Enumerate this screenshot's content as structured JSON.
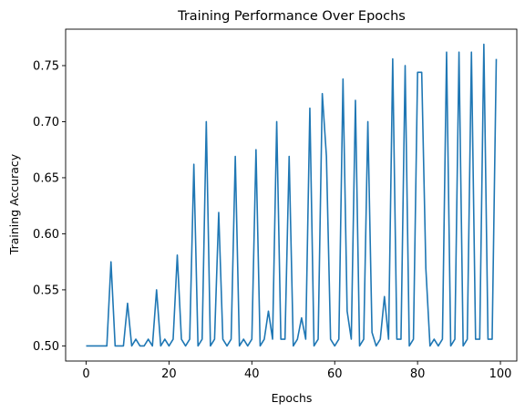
{
  "chart_data": {
    "type": "line",
    "title": "Training Performance Over Epochs",
    "xlabel": "Epochs",
    "ylabel": "Training Accuracy",
    "xlim": [
      -4.95,
      103.95
    ],
    "ylim": [
      0.4865,
      0.7825
    ],
    "xticks": [
      0,
      20,
      40,
      60,
      80,
      100
    ],
    "xtick_labels": [
      "0",
      "20",
      "40",
      "60",
      "80",
      "100"
    ],
    "yticks": [
      0.5,
      0.55,
      0.6,
      0.65,
      0.7,
      0.75
    ],
    "ytick_labels": [
      "0.50",
      "0.55",
      "0.60",
      "0.65",
      "0.70",
      "0.75"
    ],
    "grid": false,
    "line_color": "#1f77b4",
    "series": [
      {
        "x": [
          0,
          1,
          2,
          3,
          4,
          5,
          6,
          7,
          8,
          9,
          10,
          11,
          12,
          13,
          14,
          15,
          16,
          17,
          18,
          19,
          20,
          21,
          22,
          23,
          24,
          25,
          26,
          27,
          28,
          29,
          30,
          31,
          32,
          33,
          34,
          35,
          36,
          37,
          38,
          39,
          40,
          41,
          42,
          43,
          44,
          45,
          46,
          47,
          48,
          49,
          50,
          51,
          52,
          53,
          54,
          55,
          56,
          57,
          58,
          59,
          60,
          61,
          62,
          63,
          64,
          65,
          66,
          67,
          68,
          69,
          70,
          71,
          72,
          73,
          74,
          75,
          76,
          77,
          78,
          79,
          80,
          81,
          82,
          83,
          84,
          85,
          86,
          87,
          88,
          89,
          90,
          91,
          92,
          93,
          94,
          95,
          96,
          97,
          98,
          99
        ],
        "values": [
          0.5,
          0.5,
          0.5,
          0.5,
          0.5,
          0.5,
          0.575,
          0.5,
          0.5,
          0.5,
          0.538,
          0.5,
          0.506,
          0.5,
          0.5,
          0.506,
          0.5,
          0.55,
          0.5,
          0.506,
          0.5,
          0.506,
          0.581,
          0.506,
          0.5,
          0.506,
          0.662,
          0.5,
          0.506,
          0.7,
          0.5,
          0.506,
          0.619,
          0.506,
          0.5,
          0.506,
          0.669,
          0.5,
          0.506,
          0.5,
          0.506,
          0.675,
          0.5,
          0.506,
          0.531,
          0.506,
          0.7,
          0.506,
          0.506,
          0.669,
          0.5,
          0.506,
          0.525,
          0.506,
          0.712,
          0.5,
          0.506,
          0.725,
          0.669,
          0.506,
          0.5,
          0.506,
          0.738,
          0.531,
          0.506,
          0.719,
          0.5,
          0.506,
          0.7,
          0.512,
          0.5,
          0.506,
          0.544,
          0.506,
          0.756,
          0.506,
          0.506,
          0.75,
          0.5,
          0.506,
          0.744,
          0.744,
          0.569,
          0.5,
          0.506,
          0.5,
          0.506,
          0.762,
          0.5,
          0.506,
          0.762,
          0.5,
          0.506,
          0.762,
          0.506,
          0.506,
          0.769,
          0.506,
          0.506,
          0.756
        ]
      }
    ]
  }
}
